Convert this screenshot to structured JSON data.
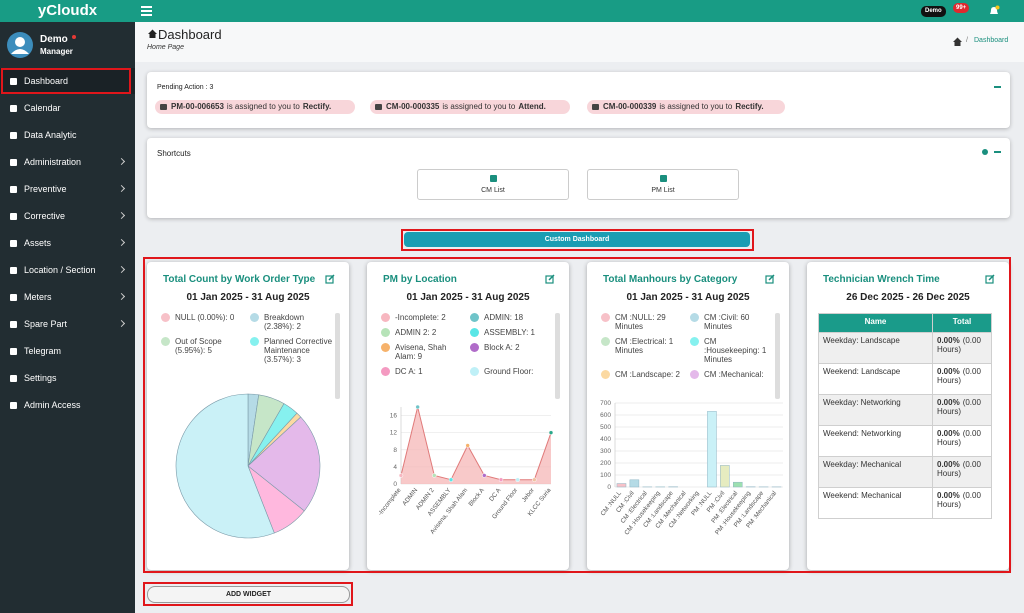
{
  "brand": "yCloudx",
  "topbar": {
    "user_badge": "Demo",
    "notification_badge": "99+"
  },
  "user": {
    "name": "Demo",
    "role": "Manager"
  },
  "nav": [
    {
      "label": "Dashboard",
      "submenu": false
    },
    {
      "label": "Calendar",
      "submenu": false
    },
    {
      "label": "Data Analytic",
      "submenu": false
    },
    {
      "label": "Administration",
      "submenu": true
    },
    {
      "label": "Preventive",
      "submenu": true
    },
    {
      "label": "Corrective",
      "submenu": true
    },
    {
      "label": "Assets",
      "submenu": true
    },
    {
      "label": "Location / Section",
      "submenu": true
    },
    {
      "label": "Meters",
      "submenu": true
    },
    {
      "label": "Spare Part",
      "submenu": true
    },
    {
      "label": "Telegram",
      "submenu": false
    },
    {
      "label": "Settings",
      "submenu": false
    },
    {
      "label": "Admin Access",
      "submenu": false
    }
  ],
  "header": {
    "title": "Dashboard",
    "subtitle": "Home Page",
    "breadcrumb": "Dashboard"
  },
  "pending": {
    "title": "Pending Action : 3",
    "items": [
      {
        "id": "PM-00-006653",
        "text": "is assigned to you to",
        "action": "Rectify."
      },
      {
        "id": "CM-00-000335",
        "text": "is assigned to you to",
        "action": "Attend."
      },
      {
        "id": "CM-00-000339",
        "text": "is assigned to you to",
        "action": "Rectify."
      }
    ]
  },
  "shortcuts": {
    "title": "Shortcuts",
    "items": [
      "CM List",
      "PM List"
    ]
  },
  "custom_dashboard": "Custom Dashboard",
  "widgets": [
    {
      "type": "pie",
      "title": "Total Count by Work Order Type",
      "date_range": "01 Jan 2025 - 31 Aug 2025",
      "legend": [
        "NULL (0.00%): 0",
        "Breakdown (2.38%): 2",
        "Out of Scope (5.95%): 5",
        "Planned Corrective Maintenance (3.57%): 3"
      ],
      "values": [
        0,
        2,
        5,
        3,
        1,
        19,
        7,
        47
      ],
      "colors": [
        "#f7c1c8",
        "#b5dbe6",
        "#c6e6c8",
        "#86f1ef",
        "#fbd9a2",
        "#e4b9ea",
        "#ffb8de",
        "#caf1f7"
      ]
    },
    {
      "type": "line",
      "title": "PM by Location",
      "date_range": "01 Jan 2025 - 31 Aug 2025",
      "legend": [
        "-Incomplete: 2",
        "ADMIN: 18",
        "ADMIN 2: 2",
        "ASSEMBLY: 1",
        "Avisena, Shah Alam: 9",
        "Block A: 2",
        "DC A: 1",
        "Ground Floor:"
      ],
      "categories": [
        "-Incomplete",
        "ADMIN",
        "ADMIN 2",
        "ASSEMBLY",
        "Avisena, Shah Alam",
        "Block A",
        "DC A",
        "Ground Floor",
        "Jebor",
        "KLCC Suria"
      ],
      "values": [
        2,
        18,
        2,
        1,
        9,
        2,
        1,
        1,
        1,
        12
      ],
      "colors": [
        "#f7b7c0",
        "#6fc4c9",
        "#b6e3b8",
        "#59e6e6",
        "#f6b26b",
        "#b06cc9",
        "#f49ac1",
        "#bff0f7",
        "#f0c0a0",
        "#2aa88a"
      ],
      "line_color": "#e07a7a",
      "fill_color": "#f5b7b7",
      "ylim": [
        0,
        18
      ],
      "yticks": [
        0,
        4,
        8,
        12,
        16
      ]
    },
    {
      "type": "bar",
      "title": "Total Manhours by Category",
      "date_range": "01 Jan 2025 - 31 Aug 2025",
      "legend": [
        "CM :NULL: 29 Minutes",
        "CM :Civil: 60 Minutes",
        "CM :Electrical: 1 Minutes",
        "CM :Housekeeping: 1 Minutes",
        "CM :Landscape: 2",
        "CM :Mechanical:"
      ],
      "categories": [
        "CM :NULL",
        "CM :Civil",
        "CM :Electrical",
        "CM :Housekeeping",
        "CM :Landscape",
        "CM :Mechanical",
        "CM :Networking",
        "PM :NULL",
        "PM :Civil",
        "PM :Electrical",
        "PM :Housekeeping",
        "PM :Landscape",
        "PM :Mechanical"
      ],
      "values": [
        29,
        60,
        1,
        1,
        2,
        0,
        0,
        630,
        180,
        40,
        2,
        1,
        1
      ],
      "colors": [
        "#f7c1c8",
        "#b5dbe6",
        "#c6e6c8",
        "#86f1ef",
        "#fbd9a2",
        "#e4b9ea",
        "#ffb8de",
        "#caf1f7",
        "#e6ecc0",
        "#9de0b0",
        "#f7c1c8",
        "#b5dbe6",
        "#e4b9ea"
      ],
      "ylim": [
        0,
        700
      ],
      "yticks": [
        0,
        100,
        200,
        300,
        400,
        500,
        600,
        700
      ]
    },
    {
      "type": "table",
      "title": "Technician Wrench Time",
      "date_range": "26 Dec 2025 - 26 Dec 2025",
      "columns": [
        "Name",
        "Total"
      ],
      "rows": [
        {
          "name": "Weekday: Landscape",
          "percent": "0.00%",
          "hours": "(0.00 Hours)"
        },
        {
          "name": "Weekend: Landscape",
          "percent": "0.00%",
          "hours": "(0.00 Hours)"
        },
        {
          "name": "Weekday: Networking",
          "percent": "0.00%",
          "hours": "(0.00 Hours)"
        },
        {
          "name": "Weekend: Networking",
          "percent": "0.00%",
          "hours": "(0.00 Hours)"
        },
        {
          "name": "Weekday: Mechanical",
          "percent": "0.00%",
          "hours": "(0.00 Hours)"
        },
        {
          "name": "Weekend: Mechanical",
          "percent": "0.00%",
          "hours": "(0.00 Hours)"
        }
      ]
    }
  ],
  "add_widget": "ADD WIDGET"
}
